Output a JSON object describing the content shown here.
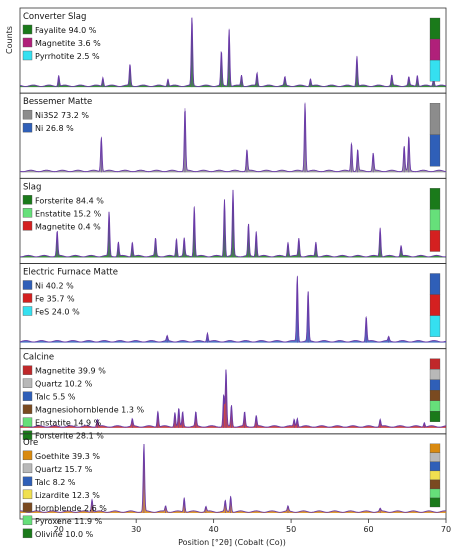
{
  "chart_data": {
    "type": "line",
    "ylabel": "Counts",
    "xlabel": "Position [°2θ] (Cobalt (Co))",
    "xlim": [
      15,
      70
    ],
    "x_ticks": [
      20,
      30,
      40,
      50,
      60,
      70
    ],
    "panels": [
      {
        "title": "Converter Slag",
        "phases": [
          {
            "label": "Fayalite 94.0 %",
            "color": "#1a7a1a"
          },
          {
            "label": "Magnetite 3.6 %",
            "color": "#b0207a"
          },
          {
            "label": "Pyrrhotite 2.5 %",
            "color": "#35e0f0"
          }
        ],
        "peaks": [
          [
            20.0,
            0.15
          ],
          [
            25.7,
            0.12
          ],
          [
            29.2,
            0.3
          ],
          [
            34.1,
            0.1
          ],
          [
            37.2,
            0.96
          ],
          [
            41.0,
            0.48
          ],
          [
            42.0,
            0.8
          ],
          [
            43.6,
            0.15
          ],
          [
            45.6,
            0.18
          ],
          [
            49.2,
            0.12
          ],
          [
            52.5,
            0.1
          ],
          [
            58.5,
            0.42
          ],
          [
            63.0,
            0.15
          ],
          [
            65.2,
            0.12
          ],
          [
            66.3,
            0.15
          ],
          [
            68.4,
            0.12
          ]
        ]
      },
      {
        "title": "Bessemer Matte",
        "phases": [
          {
            "label": "Ni3S2 73.2 %",
            "color": "#8c8c8c"
          },
          {
            "label": "Ni 26.8 %",
            "color": "#2f5fb8"
          }
        ],
        "peaks": [
          [
            25.5,
            0.48
          ],
          [
            36.3,
            0.88
          ],
          [
            44.3,
            0.3
          ],
          [
            51.8,
            0.96
          ],
          [
            57.8,
            0.4
          ],
          [
            58.6,
            0.3
          ],
          [
            60.6,
            0.25
          ],
          [
            64.6,
            0.35
          ],
          [
            65.2,
            0.48
          ]
        ]
      },
      {
        "title": "Slag",
        "phases": [
          {
            "label": "Forsterite 84.4 %",
            "color": "#1a7a1a"
          },
          {
            "label": "Enstatite 15.2 %",
            "color": "#66e07a"
          },
          {
            "label": "Magnetite 0.4 %",
            "color": "#d42020"
          }
        ],
        "peaks": [
          [
            19.8,
            0.35
          ],
          [
            26.5,
            0.62
          ],
          [
            27.7,
            0.2
          ],
          [
            29.5,
            0.2
          ],
          [
            32.5,
            0.25
          ],
          [
            35.2,
            0.25
          ],
          [
            36.2,
            0.25
          ],
          [
            37.5,
            0.7
          ],
          [
            41.4,
            0.8
          ],
          [
            42.5,
            0.92
          ],
          [
            44.5,
            0.45
          ],
          [
            45.5,
            0.35
          ],
          [
            49.6,
            0.2
          ],
          [
            51.0,
            0.25
          ],
          [
            53.2,
            0.2
          ],
          [
            61.5,
            0.4
          ],
          [
            64.2,
            0.15
          ]
        ]
      },
      {
        "title": "Electric Furnace Matte",
        "phases": [
          {
            "label": "Ni 40.2 %",
            "color": "#2f5fb8"
          },
          {
            "label": "Fe 35.7 %",
            "color": "#d42020"
          },
          {
            "label": "FeS 24.0 %",
            "color": "#35e0f0"
          }
        ],
        "peaks": [
          [
            34.0,
            0.07
          ],
          [
            39.2,
            0.12
          ],
          [
            50.8,
            0.92
          ],
          [
            52.2,
            0.7
          ],
          [
            59.7,
            0.35
          ],
          [
            62.6,
            0.06
          ]
        ]
      },
      {
        "title": "Calcine",
        "phases": [
          {
            "label": "Magnetite 39.9 %",
            "color": "#c0282a"
          },
          {
            "label": "Quartz 10.2 %",
            "color": "#b8b8b8"
          },
          {
            "label": "Talc 5.5 %",
            "color": "#2f5fb8"
          },
          {
            "label": "Magnesiohornblende 1.3 %",
            "color": "#7a4a20"
          },
          {
            "label": "Enstatite 14.9 %",
            "color": "#66e07a"
          },
          {
            "label": "Forsterite 28.1 %",
            "color": "#1a7a1a"
          }
        ],
        "peaks": [
          [
            25.0,
            0.1
          ],
          [
            29.5,
            0.1
          ],
          [
            32.8,
            0.22
          ],
          [
            35.0,
            0.2
          ],
          [
            35.5,
            0.25
          ],
          [
            36.0,
            0.2
          ],
          [
            37.7,
            0.2
          ],
          [
            41.3,
            0.45
          ],
          [
            41.6,
            0.8
          ],
          [
            42.3,
            0.3
          ],
          [
            44.0,
            0.2
          ],
          [
            45.5,
            0.15
          ],
          [
            50.4,
            0.1
          ],
          [
            50.8,
            0.12
          ],
          [
            61.5,
            0.1
          ],
          [
            67.2,
            0.06
          ]
        ]
      },
      {
        "title": "Ore",
        "phases": [
          {
            "label": "Goethite 39.3 %",
            "color": "#d98a10"
          },
          {
            "label": "Quartz 15.7 %",
            "color": "#b8b8b8"
          },
          {
            "label": "Talc 8.2 %",
            "color": "#2f5fb8"
          },
          {
            "label": "Lizardite 12.3 %",
            "color": "#f0e050"
          },
          {
            "label": "Hornblende 2.6 %",
            "color": "#7a4a20"
          },
          {
            "label": "Pyroxene 11.9 %",
            "color": "#66e07a"
          },
          {
            "label": "Olivine 10.0 %",
            "color": "#1a7a1a"
          }
        ],
        "peaks": [
          [
            24.3,
            0.18
          ],
          [
            31.0,
            0.95
          ],
          [
            33.8,
            0.08
          ],
          [
            36.2,
            0.2
          ],
          [
            39.0,
            0.07
          ],
          [
            41.5,
            0.15
          ],
          [
            42.2,
            0.22
          ],
          [
            49.6,
            0.07
          ],
          [
            61.5,
            0.04
          ]
        ]
      }
    ]
  }
}
